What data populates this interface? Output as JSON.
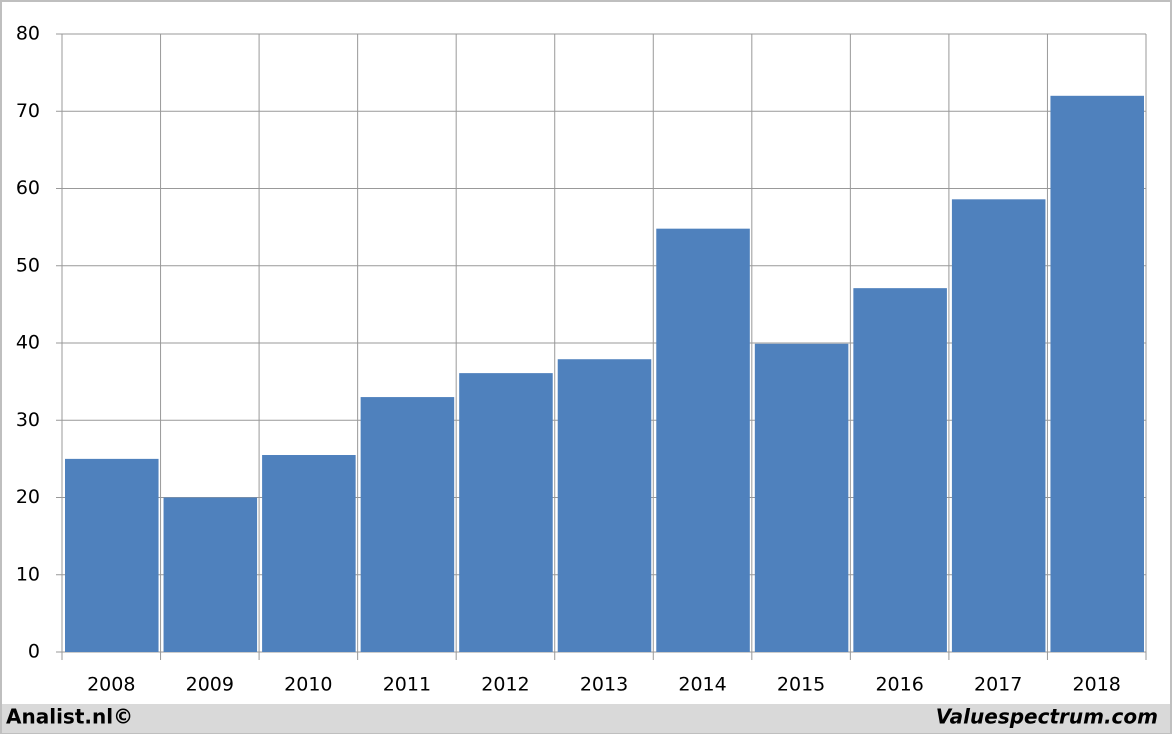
{
  "chart_data": {
    "type": "bar",
    "categories": [
      "2008",
      "2009",
      "2010",
      "2011",
      "2012",
      "2013",
      "2014",
      "2015",
      "2016",
      "2017",
      "2018"
    ],
    "values": [
      25,
      20,
      25.5,
      33,
      36.1,
      37.9,
      54.8,
      39.9,
      47.1,
      58.6,
      72
    ],
    "color": "#4f81bd",
    "ylim": [
      0,
      80
    ],
    "yticks": [
      0,
      10,
      20,
      30,
      40,
      50,
      60,
      70,
      80
    ],
    "grid": true,
    "credits": [
      "Analist.nl©",
      "Valuespectrum.com"
    ]
  }
}
